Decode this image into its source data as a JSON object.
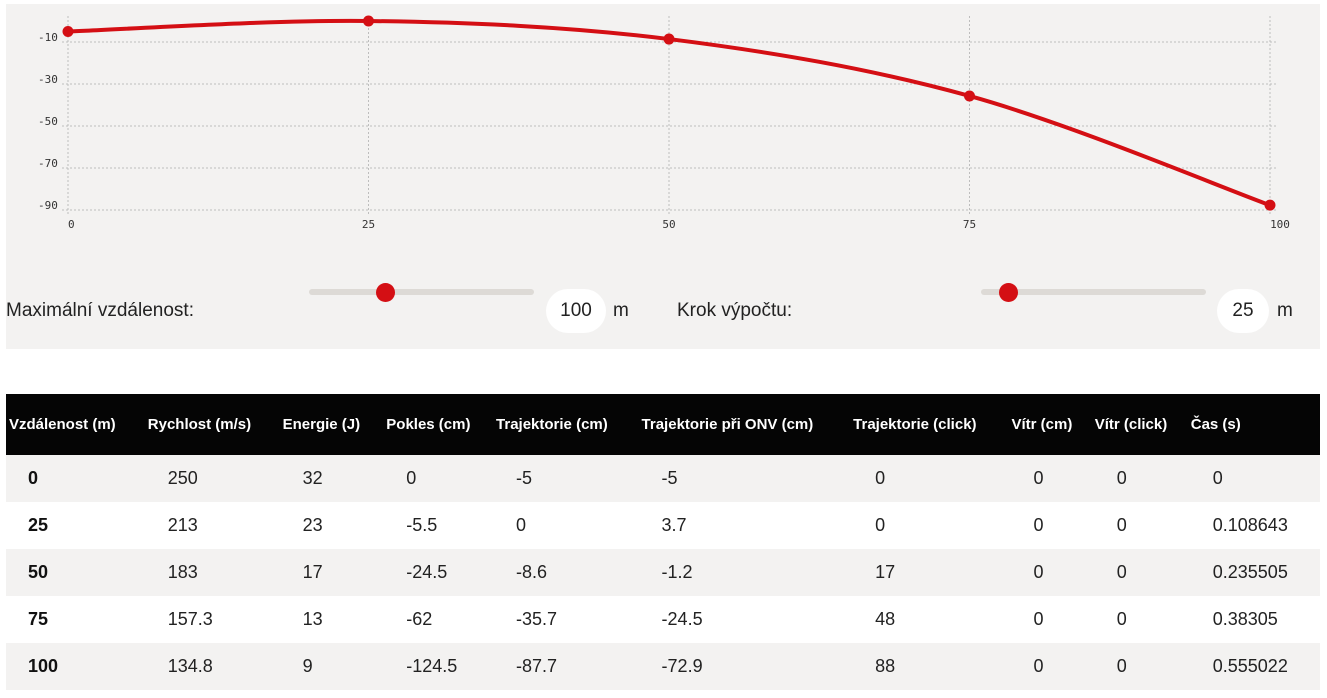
{
  "chart_data": {
    "type": "line",
    "x": [
      0,
      25,
      50,
      75,
      100
    ],
    "y": [
      -5,
      0,
      -8.6,
      -35.7,
      -87.7
    ],
    "xticks": [
      "0",
      "25",
      "50",
      "75",
      "100"
    ],
    "yticks": [
      "-10",
      "-30",
      "-50",
      "-70",
      "-90"
    ],
    "ytick_values": [
      -10,
      -30,
      -50,
      -70,
      -90
    ],
    "xlim": [
      0,
      100
    ],
    "ylim": [
      -90,
      -10
    ],
    "grid": true,
    "line_color": "#d40f14",
    "grid_color": "#bdbdbd"
  },
  "controls": {
    "max_distance": {
      "label": "Maximální vzdálenost:",
      "value": "100",
      "unit": "m",
      "slider_fraction": 0.34
    },
    "step": {
      "label": "Krok výpočtu:",
      "value": "25",
      "unit": "m",
      "slider_fraction": 0.12
    }
  },
  "table": {
    "columns": [
      "Vzdálenost (m)",
      "Rychlost (m/s)",
      "Energie (J)",
      "Pokles (cm)",
      "Trajektorie (cm)",
      "Trajektorie při ONV (cm)",
      "Trajektorie (click)",
      "Vítr (cm)",
      "Vítr (click)",
      "Čas (s)"
    ],
    "rows": [
      [
        "0",
        "250",
        "32",
        "0",
        "-5",
        "-5",
        "0",
        "0",
        "0",
        "0"
      ],
      [
        "25",
        "213",
        "23",
        "-5.5",
        "0",
        "3.7",
        "0",
        "0",
        "0",
        "0.108643"
      ],
      [
        "50",
        "183",
        "17",
        "-24.5",
        "-8.6",
        "-1.2",
        "17",
        "0",
        "0",
        "0.235505"
      ],
      [
        "75",
        "157.3",
        "13",
        "-62",
        "-35.7",
        "-24.5",
        "48",
        "0",
        "0",
        "0.38305"
      ],
      [
        "100",
        "134.8",
        "9",
        "-124.5",
        "-87.7",
        "-72.9",
        "88",
        "0",
        "0",
        "0.555022"
      ]
    ]
  }
}
